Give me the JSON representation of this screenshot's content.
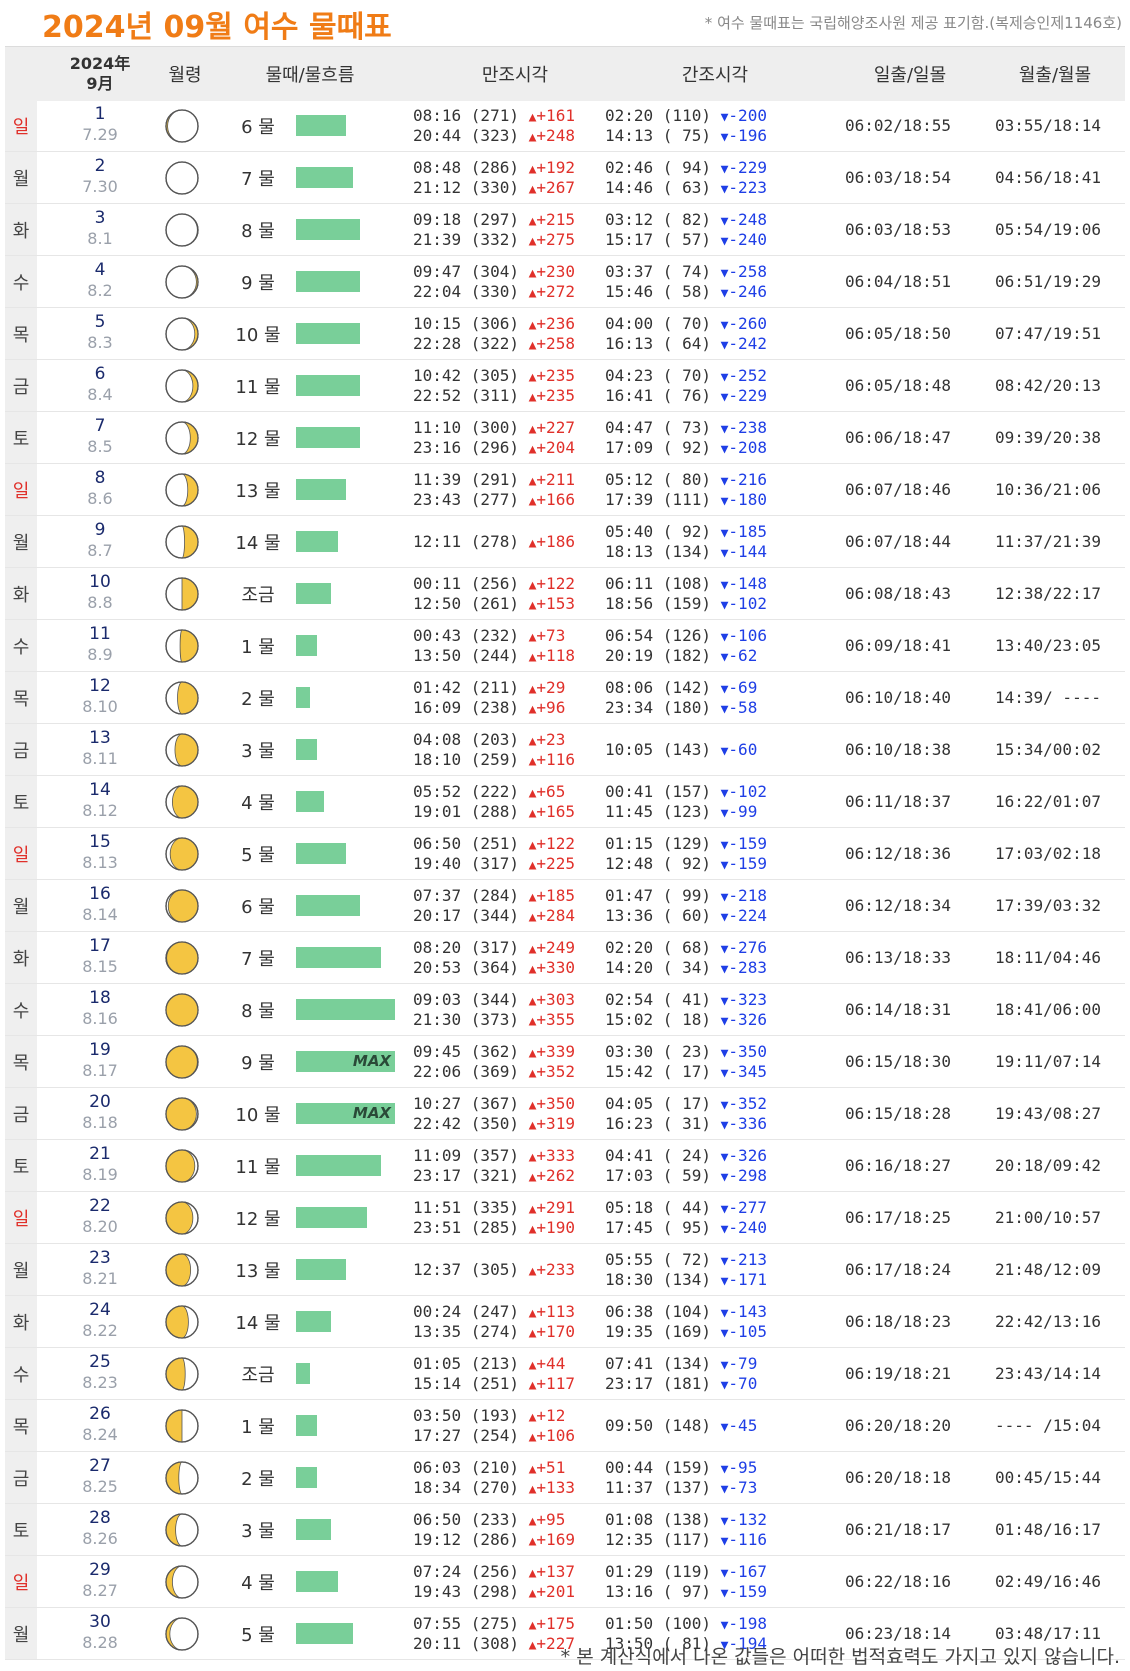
{
  "title": "2024년 09월 여수 물때표",
  "note_top": "* 여수 물때표는 국립해양조사원 제공 표기함.(복제승인제1146호)",
  "note_bottom": "* 본 계산식에서 나온 값들은 어떠한 법적효력도 가지고 있지 않습니다.",
  "header": {
    "date_year": "2024年",
    "date_month": "9月",
    "moon_age": "월령",
    "tide": "물때/물흐름",
    "high": "만조시각",
    "low": "간조시각",
    "sun": "일출/일몰",
    "moon": "월출/월몰"
  },
  "colors": {
    "title": "#f07c16",
    "bar": "#79cf99",
    "high_change": "#e0302a",
    "low_change": "#1e3ee6",
    "sunday": "#e0302a"
  },
  "rows": [
    {
      "weekday": "일",
      "day": "1",
      "lunar": "7.29",
      "tide": "6 물",
      "bar": 50,
      "max": "",
      "phase": 0.05,
      "high": [
        "08:16 (271) ",
        "20:44 (323) "
      ],
      "high_chg": [
        "+161",
        "+248"
      ],
      "low": [
        "02:20 (110) ",
        "14:13 ( 75) "
      ],
      "low_chg": [
        "-200",
        "-196"
      ],
      "sun": "06:02/18:55",
      "moon": "03:55/18:14"
    },
    {
      "weekday": "월",
      "day": "2",
      "lunar": "7.30",
      "tide": "7 물",
      "bar": 57,
      "max": "",
      "phase": 0.0,
      "high": [
        "08:48 (286) ",
        "21:12 (330) "
      ],
      "high_chg": [
        "+192",
        "+267"
      ],
      "low": [
        "02:46 ( 94) ",
        "14:46 ( 63) "
      ],
      "low_chg": [
        "-229",
        "-223"
      ],
      "sun": "06:03/18:54",
      "moon": "04:56/18:41"
    },
    {
      "weekday": "화",
      "day": "3",
      "lunar": "8.1",
      "tide": "8 물",
      "bar": 64,
      "max": "",
      "phase": 0.02,
      "high": [
        "09:18 (297) ",
        "21:39 (332) "
      ],
      "high_chg": [
        "+215",
        "+275"
      ],
      "low": [
        "03:12 ( 82) ",
        "15:17 ( 57) "
      ],
      "low_chg": [
        "-248",
        "-240"
      ],
      "sun": "06:03/18:53",
      "moon": "05:54/19:06"
    },
    {
      "weekday": "수",
      "day": "4",
      "lunar": "8.2",
      "tide": "9 물",
      "bar": 64,
      "max": "",
      "phase": 0.05,
      "high": [
        "09:47 (304) ",
        "22:04 (330) "
      ],
      "high_chg": [
        "+230",
        "+272"
      ],
      "low": [
        "03:37 ( 74) ",
        "15:46 ( 58) "
      ],
      "low_chg": [
        "-258",
        "-246"
      ],
      "sun": "06:04/18:51",
      "moon": "06:51/19:29"
    },
    {
      "weekday": "목",
      "day": "5",
      "lunar": "8.3",
      "tide": "10 물",
      "bar": 64,
      "max": "",
      "phase": 0.1,
      "high": [
        "10:15 (306) ",
        "22:28 (322) "
      ],
      "high_chg": [
        "+236",
        "+258"
      ],
      "low": [
        "04:00 ( 70) ",
        "16:13 ( 64) "
      ],
      "low_chg": [
        "-260",
        "-242"
      ],
      "sun": "06:05/18:50",
      "moon": "07:47/19:51"
    },
    {
      "weekday": "금",
      "day": "6",
      "lunar": "8.4",
      "tide": "11 물",
      "bar": 64,
      "max": "",
      "phase": 0.16,
      "high": [
        "10:42 (305) ",
        "22:52 (311) "
      ],
      "high_chg": [
        "+235",
        "+235"
      ],
      "low": [
        "04:23 ( 70) ",
        "16:41 ( 76) "
      ],
      "low_chg": [
        "-252",
        "-229"
      ],
      "sun": "06:05/18:48",
      "moon": "08:42/20:13"
    },
    {
      "weekday": "토",
      "day": "7",
      "lunar": "8.5",
      "tide": "12 물",
      "bar": 64,
      "max": "",
      "phase": 0.24,
      "high": [
        "11:10 (300) ",
        "23:16 (296) "
      ],
      "high_chg": [
        "+227",
        "+204"
      ],
      "low": [
        "04:47 ( 73) ",
        "17:09 ( 92) "
      ],
      "low_chg": [
        "-238",
        "-208"
      ],
      "sun": "06:06/18:47",
      "moon": "09:39/20:38"
    },
    {
      "weekday": "일",
      "day": "8",
      "lunar": "8.6",
      "tide": "13 물",
      "bar": 50,
      "max": "",
      "phase": 0.32,
      "high": [
        "11:39 (291) ",
        "23:43 (277) "
      ],
      "high_chg": [
        "+211",
        "+166"
      ],
      "low": [
        "05:12 ( 80) ",
        "17:39 (111) "
      ],
      "low_chg": [
        "-216",
        "-180"
      ],
      "sun": "06:07/18:46",
      "moon": "10:36/21:06"
    },
    {
      "weekday": "월",
      "day": "9",
      "lunar": "8.7",
      "tide": "14 물",
      "bar": 42,
      "max": "",
      "phase": 0.42,
      "high": [
        "12:11 (278) "
      ],
      "high_chg": [
        "+186"
      ],
      "low": [
        "05:40 ( 92) ",
        "18:13 (134) "
      ],
      "low_chg": [
        "-185",
        "-144"
      ],
      "sun": "06:07/18:44",
      "moon": "11:37/21:39"
    },
    {
      "weekday": "화",
      "day": "10",
      "lunar": "8.8",
      "tide": "조금",
      "bar": 35,
      "max": "",
      "phase": 0.5,
      "high": [
        "00:11 (256) ",
        "12:50 (261) "
      ],
      "high_chg": [
        "+122",
        "+153"
      ],
      "low": [
        "06:11 (108) ",
        "18:56 (159) "
      ],
      "low_chg": [
        "-148",
        "-102"
      ],
      "sun": "06:08/18:43",
      "moon": "12:38/22:17"
    },
    {
      "weekday": "수",
      "day": "11",
      "lunar": "8.9",
      "tide": "1 물",
      "bar": 21,
      "max": "",
      "phase": 0.56,
      "high": [
        "00:43 (232) ",
        "13:50 (244) "
      ],
      "high_chg": [
        "+73",
        "+118"
      ],
      "low": [
        "06:54 (126) ",
        "20:19 (182) "
      ],
      "low_chg": [
        "-106",
        "-62"
      ],
      "sun": "06:09/18:41",
      "moon": "13:40/23:05"
    },
    {
      "weekday": "목",
      "day": "12",
      "lunar": "8.10",
      "tide": "2 물",
      "bar": 14,
      "max": "",
      "phase": 0.64,
      "high": [
        "01:42 (211) ",
        "16:09 (238) "
      ],
      "high_chg": [
        "+29",
        "+96"
      ],
      "low": [
        "08:06 (142) ",
        "23:34 (180) "
      ],
      "low_chg": [
        "-69",
        "-58"
      ],
      "sun": "06:10/18:40",
      "moon": "14:39/ ----"
    },
    {
      "weekday": "금",
      "day": "13",
      "lunar": "8.11",
      "tide": "3 물",
      "bar": 21,
      "max": "",
      "phase": 0.72,
      "high": [
        "04:08 (203) ",
        "18:10 (259) "
      ],
      "high_chg": [
        "+23",
        "+116"
      ],
      "low": [
        "10:05 (143) "
      ],
      "low_chg": [
        "-60"
      ],
      "sun": "06:10/18:38",
      "moon": "15:34/00:02"
    },
    {
      "weekday": "토",
      "day": "14",
      "lunar": "8.12",
      "tide": "4 물",
      "bar": 28,
      "max": "",
      "phase": 0.8,
      "high": [
        "05:52 (222) ",
        "19:01 (288) "
      ],
      "high_chg": [
        "+65",
        "+165"
      ],
      "low": [
        "00:41 (157) ",
        "11:45 (123) "
      ],
      "low_chg": [
        "-102",
        "-99"
      ],
      "sun": "06:11/18:37",
      "moon": "16:22/01:07"
    },
    {
      "weekday": "일",
      "day": "15",
      "lunar": "8.13",
      "tide": "5 물",
      "bar": 50,
      "max": "",
      "phase": 0.87,
      "high": [
        "06:50 (251) ",
        "19:40 (317) "
      ],
      "high_chg": [
        "+122",
        "+225"
      ],
      "low": [
        "01:15 (129) ",
        "12:48 ( 92) "
      ],
      "low_chg": [
        "-159",
        "-159"
      ],
      "sun": "06:12/18:36",
      "moon": "17:03/02:18"
    },
    {
      "weekday": "월",
      "day": "16",
      "lunar": "8.14",
      "tide": "6 물",
      "bar": 64,
      "max": "",
      "phase": 0.93,
      "high": [
        "07:37 (284) ",
        "20:17 (344) "
      ],
      "high_chg": [
        "+185",
        "+284"
      ],
      "low": [
        "01:47 ( 99) ",
        "13:36 ( 60) "
      ],
      "low_chg": [
        "-218",
        "-224"
      ],
      "sun": "06:12/18:34",
      "moon": "17:39/03:32"
    },
    {
      "weekday": "화",
      "day": "17",
      "lunar": "8.15",
      "tide": "7 물",
      "bar": 85,
      "max": "",
      "phase": 0.98,
      "high": [
        "08:20 (317) ",
        "20:53 (364) "
      ],
      "high_chg": [
        "+249",
        "+330"
      ],
      "low": [
        "02:20 ( 68) ",
        "14:20 ( 34) "
      ],
      "low_chg": [
        "-276",
        "-283"
      ],
      "sun": "06:13/18:33",
      "moon": "18:11/04:46"
    },
    {
      "weekday": "수",
      "day": "18",
      "lunar": "8.16",
      "tide": "8 물",
      "bar": 99,
      "max": "",
      "phase": 1.0,
      "high": [
        "09:03 (344) ",
        "21:30 (373) "
      ],
      "high_chg": [
        "+303",
        "+355"
      ],
      "low": [
        "02:54 ( 41) ",
        "15:02 ( 18) "
      ],
      "low_chg": [
        "-323",
        "-326"
      ],
      "sun": "06:14/18:31",
      "moon": "18:41/06:00"
    },
    {
      "weekday": "목",
      "day": "19",
      "lunar": "8.17",
      "tide": "9 물",
      "bar": 99,
      "max": "MAX",
      "phase": 0.98,
      "high": [
        "09:45 (362) ",
        "22:06 (369) "
      ],
      "high_chg": [
        "+339",
        "+352"
      ],
      "low": [
        "03:30 ( 23) ",
        "15:42 ( 17) "
      ],
      "low_chg": [
        "-350",
        "-345"
      ],
      "sun": "06:15/18:30",
      "moon": "19:11/07:14"
    },
    {
      "weekday": "금",
      "day": "20",
      "lunar": "8.18",
      "tide": "10 물",
      "bar": 99,
      "max": "MAX",
      "phase": 0.95,
      "high": [
        "10:27 (367) ",
        "22:42 (350) "
      ],
      "high_chg": [
        "+350",
        "+319"
      ],
      "low": [
        "04:05 ( 17) ",
        "16:23 ( 31) "
      ],
      "low_chg": [
        "-352",
        "-336"
      ],
      "sun": "06:15/18:28",
      "moon": "19:43/08:27"
    },
    {
      "weekday": "토",
      "day": "21",
      "lunar": "8.19",
      "tide": "11 물",
      "bar": 85,
      "max": "",
      "phase": 0.9,
      "high": [
        "11:09 (357) ",
        "23:17 (321) "
      ],
      "high_chg": [
        "+333",
        "+262"
      ],
      "low": [
        "04:41 ( 24) ",
        "17:03 ( 59) "
      ],
      "low_chg": [
        "-326",
        "-298"
      ],
      "sun": "06:16/18:27",
      "moon": "20:18/09:42"
    },
    {
      "weekday": "일",
      "day": "22",
      "lunar": "8.20",
      "tide": "12 물",
      "bar": 71,
      "max": "",
      "phase": 0.84,
      "high": [
        "11:51 (335) ",
        "23:51 (285) "
      ],
      "high_chg": [
        "+291",
        "+190"
      ],
      "low": [
        "05:18 ( 44) ",
        "17:45 ( 95) "
      ],
      "low_chg": [
        "-277",
        "-240"
      ],
      "sun": "06:17/18:25",
      "moon": "21:00/10:57"
    },
    {
      "weekday": "월",
      "day": "23",
      "lunar": "8.21",
      "tide": "13 물",
      "bar": 50,
      "max": "",
      "phase": 0.77,
      "high": [
        "12:37 (305) "
      ],
      "high_chg": [
        "+233"
      ],
      "low": [
        "05:55 ( 72) ",
        "18:30 (134) "
      ],
      "low_chg": [
        "-213",
        "-171"
      ],
      "sun": "06:17/18:24",
      "moon": "21:48/12:09"
    },
    {
      "weekday": "화",
      "day": "24",
      "lunar": "8.22",
      "tide": "14 물",
      "bar": 35,
      "max": "",
      "phase": 0.7,
      "high": [
        "00:24 (247) ",
        "13:35 (274) "
      ],
      "high_chg": [
        "+113",
        "+170"
      ],
      "low": [
        "06:38 (104) ",
        "19:35 (169) "
      ],
      "low_chg": [
        "-143",
        "-105"
      ],
      "sun": "06:18/18:23",
      "moon": "22:42/13:16"
    },
    {
      "weekday": "수",
      "day": "25",
      "lunar": "8.23",
      "tide": "조금",
      "bar": 14,
      "max": "",
      "phase": 0.6,
      "high": [
        "01:05 (213) ",
        "15:14 (251) "
      ],
      "high_chg": [
        "+44",
        "+117"
      ],
      "low": [
        "07:41 (134) ",
        "23:17 (181) "
      ],
      "low_chg": [
        "-79",
        "-70"
      ],
      "sun": "06:19/18:21",
      "moon": "23:43/14:14"
    },
    {
      "weekday": "목",
      "day": "26",
      "lunar": "8.24",
      "tide": "1 물",
      "bar": 21,
      "max": "",
      "phase": 0.5,
      "high": [
        "03:50 (193) ",
        "17:27 (254) "
      ],
      "high_chg": [
        "+12",
        "+106"
      ],
      "low": [
        "09:50 (148) "
      ],
      "low_chg": [
        "-45"
      ],
      "sun": "06:20/18:20",
      "moon": "---- /15:04"
    },
    {
      "weekday": "금",
      "day": "27",
      "lunar": "8.25",
      "tide": "2 물",
      "bar": 21,
      "max": "",
      "phase": 0.4,
      "high": [
        "06:03 (210) ",
        "18:34 (270) "
      ],
      "high_chg": [
        "+51",
        "+133"
      ],
      "low": [
        "00:44 (159) ",
        "11:37 (137) "
      ],
      "low_chg": [
        "-95",
        "-73"
      ],
      "sun": "06:20/18:18",
      "moon": "00:45/15:44"
    },
    {
      "weekday": "토",
      "day": "28",
      "lunar": "8.26",
      "tide": "3 물",
      "bar": 35,
      "max": "",
      "phase": 0.3,
      "high": [
        "06:50 (233) ",
        "19:12 (286) "
      ],
      "high_chg": [
        "+95",
        "+169"
      ],
      "low": [
        "01:08 (138) ",
        "12:35 (117) "
      ],
      "low_chg": [
        "-132",
        "-116"
      ],
      "sun": "06:21/18:17",
      "moon": "01:48/16:17"
    },
    {
      "weekday": "일",
      "day": "29",
      "lunar": "8.27",
      "tide": "4 물",
      "bar": 42,
      "max": "",
      "phase": 0.2,
      "high": [
        "07:24 (256) ",
        "19:43 (298) "
      ],
      "high_chg": [
        "+137",
        "+201"
      ],
      "low": [
        "01:29 (119) ",
        "13:16 ( 97) "
      ],
      "low_chg": [
        "-167",
        "-159"
      ],
      "sun": "06:22/18:16",
      "moon": "02:49/16:46"
    },
    {
      "weekday": "월",
      "day": "30",
      "lunar": "8.28",
      "tide": "5 물",
      "bar": 57,
      "max": "",
      "phase": 0.12,
      "high": [
        "07:55 (275) ",
        "20:11 (308) "
      ],
      "high_chg": [
        "+175",
        "+227"
      ],
      "low": [
        "01:50 (100) ",
        "13:50 ( 81) "
      ],
      "low_chg": [
        "-198",
        "-194"
      ],
      "sun": "06:23/18:14",
      "moon": "03:48/17:11"
    }
  ]
}
